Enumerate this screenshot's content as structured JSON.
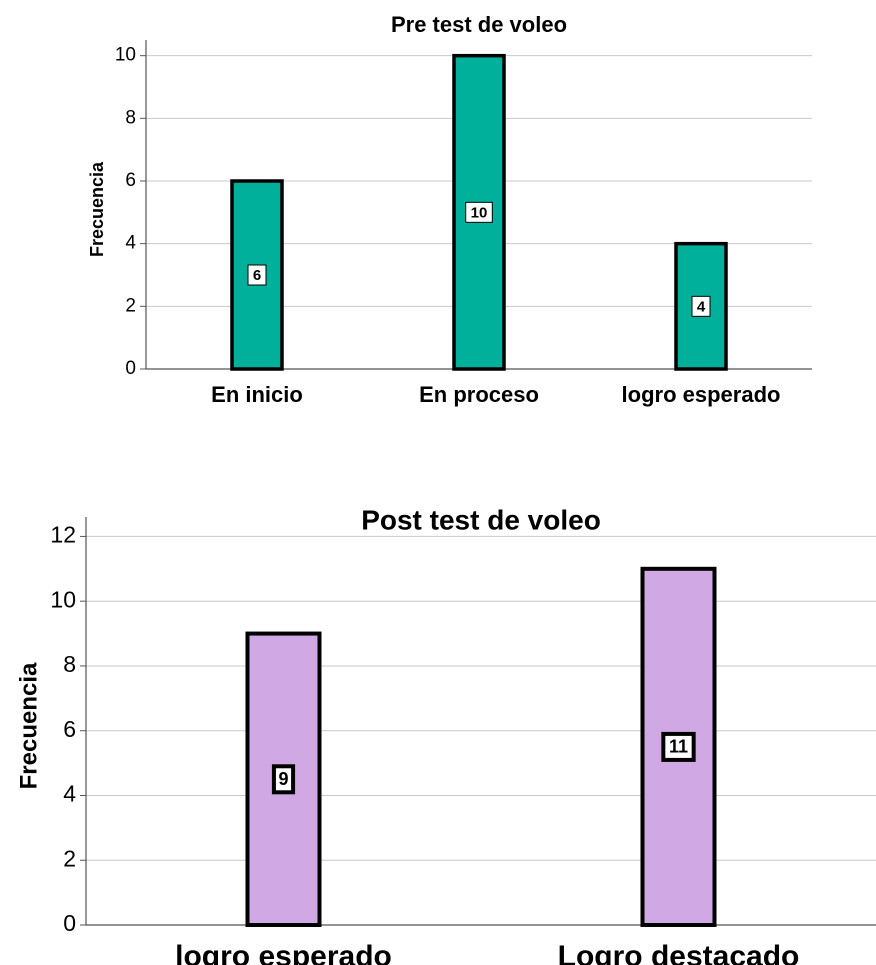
{
  "chart_data": [
    {
      "type": "bar",
      "title": "Pre test de voleo",
      "xlabel": "",
      "ylabel": "Frecuencia",
      "categories": [
        "En inicio",
        "En proceso",
        "logro esperado"
      ],
      "values": [
        6,
        10,
        4
      ],
      "data_labels": [
        "6",
        "10",
        "4"
      ],
      "ylim": [
        0,
        10.5
      ],
      "yticks": [
        "0",
        "2",
        "4",
        "6",
        "8",
        "10"
      ],
      "grid": true,
      "bar_color": "#00b09b"
    },
    {
      "type": "bar",
      "title": "Post test de voleo",
      "xlabel": "",
      "ylabel": "Frecuencia",
      "categories": [
        "logro esperado",
        "Logro destacado"
      ],
      "values": [
        9,
        11
      ],
      "data_labels": [
        "9",
        "11"
      ],
      "ylim": [
        0,
        12.6
      ],
      "yticks": [
        "0",
        "2",
        "4",
        "6",
        "8",
        "10",
        "12"
      ],
      "grid": true,
      "bar_color": "#d0a8e4"
    }
  ]
}
